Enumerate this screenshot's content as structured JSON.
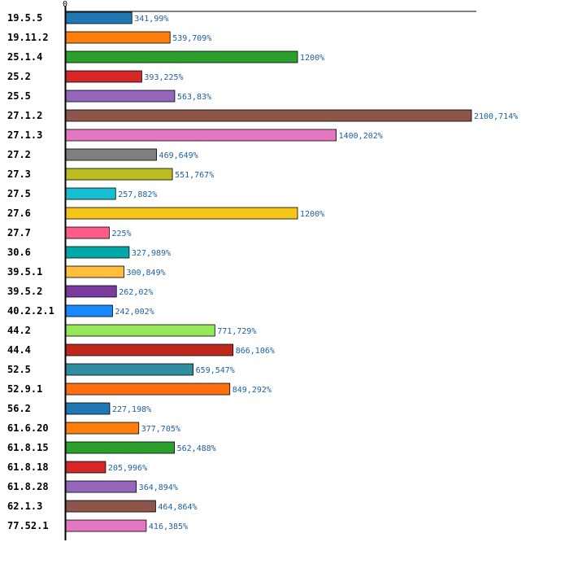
{
  "chart_data": {
    "type": "bar",
    "orientation": "horizontal",
    "categories": [
      "19.5.5",
      "19.11.2",
      "25.1.4",
      "25.2",
      "25.5",
      "27.1.2",
      "27.1.3",
      "27.2",
      "27.3",
      "27.5",
      "27.6",
      "27.7",
      "30.6",
      "39.5.1",
      "39.5.2",
      "40.2.2.1",
      "44.2",
      "44.4",
      "52.5",
      "52.9.1",
      "56.2",
      "61.6.20",
      "61.8.15",
      "61.8.18",
      "61.8.28",
      "62.1.3",
      "77.52.1"
    ],
    "values": [
      341.99,
      539.709,
      1200,
      393.225,
      563.83,
      2100.714,
      1400.202,
      469.649,
      551.767,
      257.882,
      1200,
      225,
      327.989,
      300.849,
      262.02,
      242.002,
      771.729,
      866.106,
      659.547,
      849.292,
      227.198,
      377.705,
      562.488,
      205.996,
      364.894,
      464.864,
      416.385
    ],
    "value_labels": [
      "341,99%",
      "539,709%",
      "1200%",
      "393,225%",
      "563,83%",
      "2100,714%",
      "1400,202%",
      "469,649%",
      "551,767%",
      "257,882%",
      "1200%",
      "225%",
      "327,989%",
      "300,849%",
      "262,02%",
      "242,002%",
      "771,729%",
      "866,106%",
      "659,547%",
      "849,292%",
      "227,198%",
      "377,705%",
      "562,488%",
      "205,996%",
      "364,894%",
      "464,864%",
      "416,385%"
    ],
    "colors": [
      "#1f77b4",
      "#ff7f0e",
      "#2ca02c",
      "#d62728",
      "#9467bd",
      "#8c564b",
      "#e377c2",
      "#7f7f7f",
      "#bcbd22",
      "#17becf",
      "#f5c518",
      "#ff5c8a",
      "#00a8a8",
      "#ffbe3b",
      "#7b3b9e",
      "#1a88ff",
      "#95e85a",
      "#c0281e",
      "#2f8fa0",
      "#ff6f0f",
      "#1f77b4",
      "#ff7f0e",
      "#2ca02c",
      "#d62728",
      "#9467bd",
      "#8c564b",
      "#e377c2"
    ],
    "x_ticks": [
      "0"
    ],
    "xlim": [
      0,
      2100.714
    ],
    "title": "",
    "xlabel": "",
    "ylabel": "",
    "grid": false,
    "legend": "none"
  }
}
